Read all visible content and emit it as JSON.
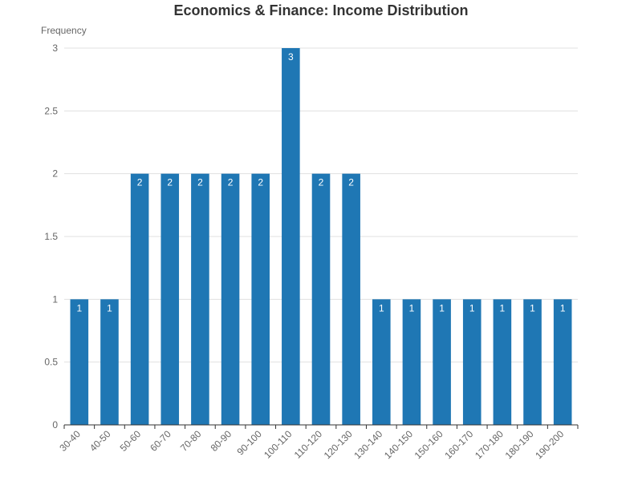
{
  "chart_data": {
    "type": "bar",
    "title": "Economics & Finance: Income Distribution",
    "ylabel": "Frequency",
    "xlabel": "",
    "categories": [
      "30-40",
      "40-50",
      "50-60",
      "60-70",
      "70-80",
      "80-90",
      "90-100",
      "100-110",
      "110-120",
      "120-130",
      "130-140",
      "140-150",
      "150-160",
      "160-170",
      "170-180",
      "180-190",
      "190-200"
    ],
    "values": [
      1,
      1,
      2,
      2,
      2,
      2,
      2,
      3,
      2,
      2,
      1,
      1,
      1,
      1,
      1,
      1,
      1
    ],
    "ylim": [
      0,
      3
    ],
    "yticks": [
      "0",
      "0.5",
      "1",
      "1.5",
      "2",
      "2.5",
      "3"
    ],
    "grid": true,
    "legend": "none",
    "colors": {
      "bar": "#1f77b4",
      "grid": "#e0e0e0",
      "axis": "#333333",
      "text": "#666666",
      "title": "#333333",
      "data_label": "#ffffff"
    }
  }
}
